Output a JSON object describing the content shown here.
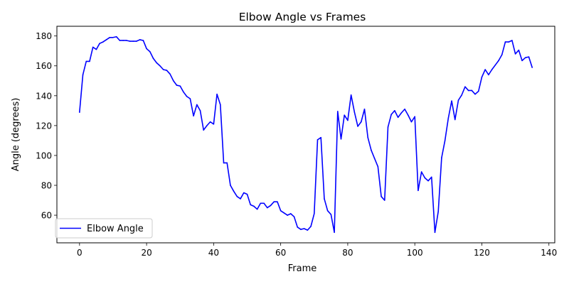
{
  "chart_data": {
    "type": "line",
    "title": "Elbow Angle vs Frames",
    "xlabel": "Frame",
    "ylabel": "Angle (degrees)",
    "xlim": [
      -6.75,
      141.75
    ],
    "ylim": [
      41.5,
      186.5
    ],
    "xticks": [
      0,
      20,
      40,
      60,
      80,
      100,
      120,
      140
    ],
    "yticks": [
      60,
      80,
      100,
      120,
      140,
      160,
      180
    ],
    "grid": false,
    "legend": {
      "position": "bottom-left"
    },
    "series": [
      {
        "name": "Elbow Angle",
        "color": "#0000ff",
        "x": [
          0,
          1,
          2,
          3,
          4,
          5,
          6,
          7,
          8,
          9,
          10,
          11,
          12,
          13,
          14,
          15,
          16,
          17,
          18,
          19,
          20,
          21,
          22,
          23,
          24,
          25,
          26,
          27,
          28,
          29,
          30,
          31,
          32,
          33,
          34,
          35,
          36,
          37,
          38,
          39,
          40,
          41,
          42,
          43,
          44,
          45,
          46,
          47,
          48,
          49,
          50,
          51,
          52,
          53,
          54,
          55,
          56,
          57,
          58,
          59,
          60,
          61,
          62,
          63,
          64,
          65,
          66,
          67,
          68,
          69,
          70,
          71,
          72,
          73,
          74,
          75,
          76,
          77,
          78,
          79,
          80,
          81,
          82,
          83,
          84,
          85,
          86,
          87,
          88,
          89,
          90,
          91,
          92,
          93,
          94,
          95,
          96,
          97,
          98,
          99,
          100,
          101,
          102,
          103,
          104,
          105,
          106,
          107,
          108,
          109,
          110,
          111,
          112,
          113,
          114,
          115,
          116,
          117,
          118,
          119,
          120,
          121,
          122,
          123,
          124,
          125,
          126,
          127,
          128,
          129,
          130,
          131,
          132,
          133,
          134,
          135
        ],
        "values": [
          129,
          154,
          163,
          163,
          172.5,
          171,
          175,
          176,
          177.5,
          179,
          179,
          179.5,
          177,
          177,
          177,
          176.5,
          176.5,
          176.5,
          177.5,
          177,
          171.5,
          169.5,
          165,
          162,
          160,
          157.5,
          157,
          154.5,
          150,
          147,
          146.5,
          142.5,
          139.5,
          138,
          126.5,
          134,
          130,
          117,
          120,
          122.5,
          121,
          141,
          134,
          95,
          95,
          80,
          76,
          72.5,
          71,
          75,
          74,
          67,
          66,
          64,
          68,
          68,
          65,
          66.5,
          69,
          69,
          63,
          61.5,
          60,
          61,
          59,
          52,
          50.5,
          51,
          50,
          52.5,
          61,
          110.5,
          112,
          71,
          63,
          60.5,
          48.5,
          129.5,
          111,
          127,
          123.5,
          140.5,
          129,
          119.5,
          122.5,
          131,
          112,
          103.5,
          98,
          92.5,
          72.5,
          70,
          119,
          127.5,
          130,
          125.5,
          128.5,
          131,
          127,
          122.5,
          126,
          76.5,
          89,
          85,
          83,
          85.5,
          48.5,
          62.5,
          98.5,
          110,
          125,
          136.5,
          124,
          137,
          140.5,
          146,
          143.5,
          143.5,
          141,
          143,
          152.5,
          157.5,
          154,
          157.5,
          160.5,
          163.5,
          167.5,
          176,
          176,
          177,
          168,
          170.5,
          163.5,
          165.5,
          166,
          159
        ]
      }
    ]
  }
}
